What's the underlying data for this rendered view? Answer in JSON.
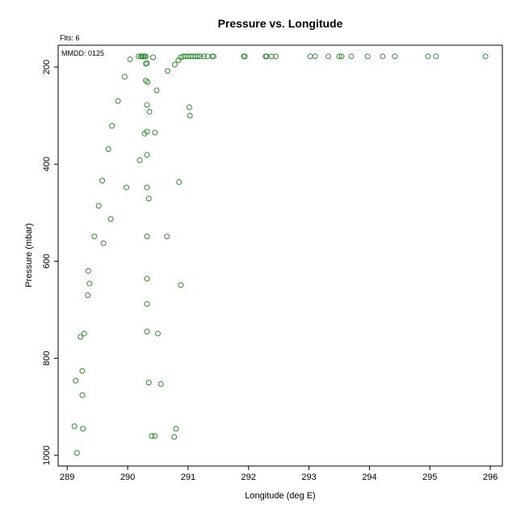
{
  "chart_data": {
    "type": "scatter",
    "title": "Pressure vs. Longitude",
    "xlabel": "Longitude (deg E)",
    "ylabel": "Pressure (mbar)",
    "header_left": "Flts: 6",
    "inset_label": "MMDD: 0125",
    "xlim": [
      288.85,
      296.2
    ],
    "ylim": [
      1022,
      155
    ],
    "y_inverted": true,
    "grid": false,
    "marker": "open-circle",
    "marker_color": "#2e8b2e",
    "x_ticks": [
      289,
      290,
      291,
      292,
      293,
      294,
      295,
      296
    ],
    "y_ticks": [
      200,
      400,
      600,
      800,
      1000
    ],
    "points": [
      [
        290.18,
        178
      ],
      [
        290.22,
        178
      ],
      [
        290.24,
        178
      ],
      [
        290.26,
        178
      ],
      [
        290.28,
        178
      ],
      [
        290.3,
        178
      ],
      [
        290.42,
        180
      ],
      [
        290.88,
        180
      ],
      [
        290.92,
        178
      ],
      [
        290.96,
        178
      ],
      [
        291.0,
        178
      ],
      [
        291.04,
        178
      ],
      [
        291.08,
        178
      ],
      [
        291.12,
        178
      ],
      [
        291.16,
        178
      ],
      [
        291.2,
        178
      ],
      [
        291.26,
        178
      ],
      [
        291.32,
        178
      ],
      [
        291.4,
        178
      ],
      [
        291.42,
        178
      ],
      [
        291.92,
        178
      ],
      [
        291.94,
        178
      ],
      [
        292.28,
        178
      ],
      [
        292.3,
        178
      ],
      [
        292.38,
        178
      ],
      [
        292.45,
        178
      ],
      [
        293.02,
        178
      ],
      [
        293.1,
        178
      ],
      [
        293.32,
        178
      ],
      [
        293.5,
        178
      ],
      [
        293.54,
        178
      ],
      [
        293.7,
        178
      ],
      [
        293.97,
        178
      ],
      [
        294.22,
        178
      ],
      [
        294.42,
        178
      ],
      [
        294.97,
        178
      ],
      [
        295.1,
        178
      ],
      [
        295.92,
        178
      ],
      [
        290.04,
        184
      ],
      [
        290.84,
        186
      ],
      [
        290.32,
        192
      ],
      [
        290.3,
        193
      ],
      [
        290.78,
        195
      ],
      [
        290.66,
        208
      ],
      [
        289.95,
        220
      ],
      [
        290.3,
        228
      ],
      [
        290.33,
        231
      ],
      [
        290.48,
        248
      ],
      [
        289.84,
        270
      ],
      [
        290.32,
        278
      ],
      [
        291.02,
        283
      ],
      [
        290.36,
        292
      ],
      [
        291.03,
        300
      ],
      [
        289.74,
        321
      ],
      [
        290.32,
        333
      ],
      [
        290.45,
        335
      ],
      [
        290.28,
        337
      ],
      [
        289.68,
        369
      ],
      [
        290.32,
        381
      ],
      [
        290.2,
        392
      ],
      [
        289.58,
        434
      ],
      [
        290.85,
        437
      ],
      [
        289.98,
        448
      ],
      [
        290.32,
        448
      ],
      [
        290.35,
        471
      ],
      [
        289.52,
        486
      ],
      [
        289.72,
        513
      ],
      [
        289.45,
        549
      ],
      [
        290.32,
        549
      ],
      [
        290.65,
        549
      ],
      [
        289.6,
        563
      ],
      [
        289.35,
        620
      ],
      [
        290.32,
        636
      ],
      [
        289.37,
        646
      ],
      [
        290.88,
        649
      ],
      [
        289.34,
        670
      ],
      [
        290.32,
        688
      ],
      [
        290.32,
        745
      ],
      [
        289.28,
        749
      ],
      [
        290.5,
        749
      ],
      [
        289.22,
        756
      ],
      [
        289.25,
        826
      ],
      [
        289.14,
        846
      ],
      [
        290.35,
        850
      ],
      [
        290.55,
        853
      ],
      [
        289.25,
        876
      ],
      [
        289.12,
        940
      ],
      [
        290.8,
        945
      ],
      [
        289.26,
        945
      ],
      [
        290.4,
        960
      ],
      [
        290.45,
        960
      ],
      [
        290.77,
        962
      ],
      [
        289.16,
        995
      ]
    ]
  }
}
